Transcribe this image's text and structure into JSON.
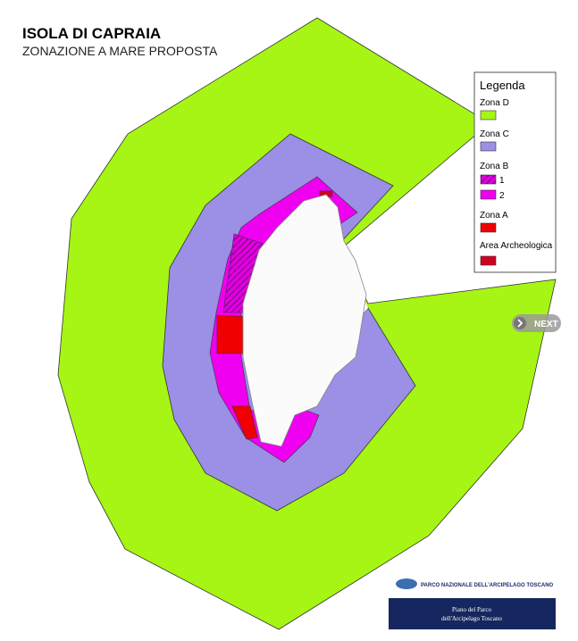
{
  "header": {
    "title": "ISOLA DI CAPRAIA",
    "subtitle": "ZONAZIONE A MARE PROPOSTA"
  },
  "legend": {
    "title": "Legenda",
    "groups": [
      {
        "label": "Zona D"
      },
      {
        "label": "Zona C"
      },
      {
        "label": "Zona B",
        "items": [
          "1",
          "2"
        ]
      },
      {
        "label": "Zona A"
      },
      {
        "label": "Area Archeologica"
      }
    ]
  },
  "navigation": {
    "next": "NEXT"
  },
  "footer": {
    "organization": "PARCO NAZIONALE DELL'ARCIPELAGO TOSCANO",
    "plan_line1": "Piano del Parco",
    "plan_line2": "dell'Arcipelago Toscano"
  }
}
